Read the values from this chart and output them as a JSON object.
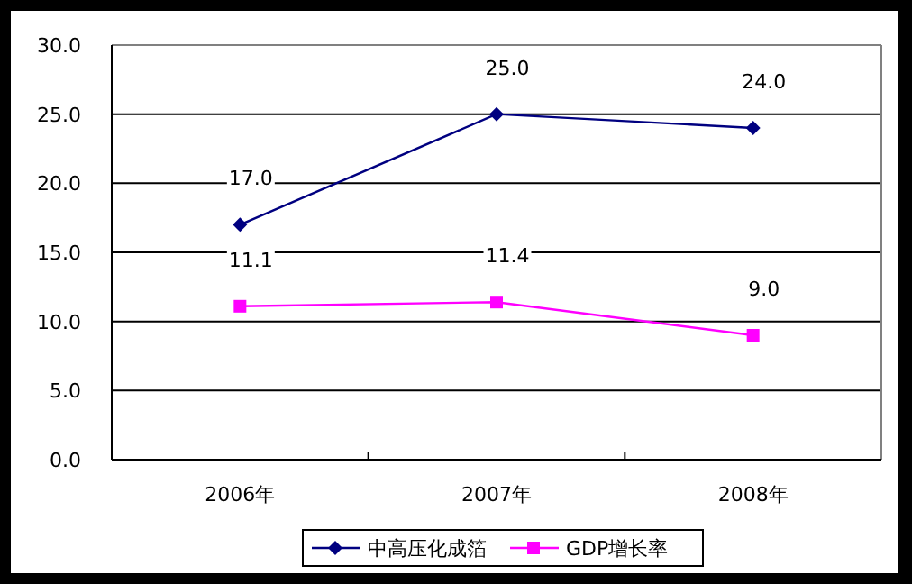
{
  "chart_data": {
    "type": "line",
    "categories": [
      "2006年",
      "2007年",
      "2008年"
    ],
    "series": [
      {
        "name": "中高压化成箔",
        "color": "#000080",
        "marker": "diamond",
        "values": [
          17.0,
          25.0,
          24.0
        ],
        "value_labels": [
          "17.0",
          "25.0",
          "24.0"
        ]
      },
      {
        "name": "GDP增长率",
        "color": "#ff00ff",
        "marker": "square",
        "values": [
          11.1,
          11.4,
          9.0
        ],
        "value_labels": [
          "11.1",
          "11.4",
          "9.0"
        ]
      }
    ],
    "ylim": [
      0,
      30
    ],
    "yticks": [
      {
        "value": 0,
        "label": "0.0"
      },
      {
        "value": 5,
        "label": "5.0"
      },
      {
        "value": 10,
        "label": "10.0"
      },
      {
        "value": 15,
        "label": "15.0"
      },
      {
        "value": 20,
        "label": "20.0"
      },
      {
        "value": 25,
        "label": "25.0"
      },
      {
        "value": 30,
        "label": "30.0"
      }
    ],
    "grid": "y",
    "legend": "bottom"
  }
}
